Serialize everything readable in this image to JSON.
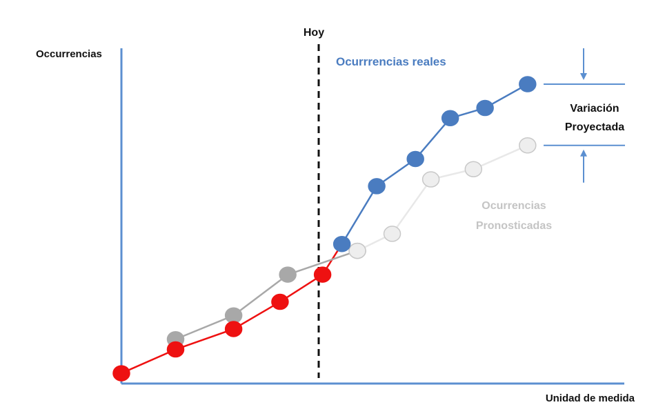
{
  "chart_data": {
    "type": "line",
    "ylabel": "Occurrencias",
    "xlabel": "Unidad de medida",
    "today_label": "Hoy",
    "today_x": 5.1,
    "xlim": [
      0,
      13
    ],
    "ylim": [
      0,
      10
    ],
    "grid": false,
    "colors": {
      "axis": "#5b8fd0",
      "real": "#4a7cc0",
      "history": "#ee1111",
      "history_gray": "#a8a8a8",
      "forecast": "#eeeeee",
      "forecast_stroke": "#c8c8c8",
      "variation": "#5b8fd0"
    },
    "series": [
      {
        "name": "",
        "key": "history_red",
        "x": [
          0,
          1.4,
          2.9,
          4.1,
          5.2
        ],
        "y": [
          0.1,
          0.8,
          1.4,
          2.2,
          3.0
        ]
      },
      {
        "name": "",
        "key": "history_gray",
        "x": [
          1.4,
          2.9,
          4.3,
          6.1
        ],
        "y": [
          1.1,
          1.8,
          3.0,
          3.7
        ]
      },
      {
        "name": "Ocurrrencias reales",
        "key": "real",
        "x": [
          5.7,
          6.6,
          7.6,
          8.5,
          9.4,
          10.5
        ],
        "y": [
          3.9,
          5.6,
          6.4,
          7.6,
          7.9,
          8.6
        ]
      },
      {
        "name": "Ocurrencias Pronosticadas",
        "key": "forecast",
        "x": [
          6.1,
          7.0,
          8.0,
          9.1,
          10.5
        ],
        "y": [
          3.7,
          4.2,
          5.8,
          6.1,
          6.8
        ]
      }
    ],
    "annotations": {
      "real_label": "Ocurrrencias reales",
      "forecast_label_line1": "Ocurrencias",
      "forecast_label_line2": "Pronosticadas",
      "variation_line1": "Variación",
      "variation_line2": "Proyectada"
    }
  }
}
